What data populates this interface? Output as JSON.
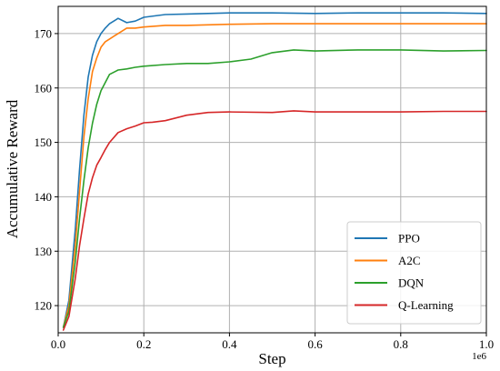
{
  "chart_data": {
    "type": "line",
    "title": "",
    "xlabel": "Step",
    "ylabel": "Accumulative Reward",
    "x_offset_label": "1e6",
    "xlim": [
      0.0,
      1.0
    ],
    "ylim": [
      115,
      175
    ],
    "x_ticks": [
      0.0,
      0.2,
      0.4,
      0.6,
      0.8,
      1.0
    ],
    "x_tick_labels": [
      "0.0",
      "0.2",
      "0.4",
      "0.6",
      "0.8",
      "1.0"
    ],
    "y_ticks": [
      120,
      130,
      140,
      150,
      160,
      170
    ],
    "y_tick_labels": [
      "120",
      "130",
      "140",
      "150",
      "160",
      "170"
    ],
    "grid": true,
    "legend_position": "bottom-right",
    "series": [
      {
        "name": "PPO",
        "color": "#1f77b4",
        "x": [
          0.012,
          0.025,
          0.04,
          0.05,
          0.06,
          0.07,
          0.08,
          0.09,
          0.1,
          0.11,
          0.12,
          0.14,
          0.16,
          0.18,
          0.2,
          0.25,
          0.3,
          0.4,
          0.5,
          0.6,
          0.7,
          0.8,
          0.9,
          1.0
        ],
        "y": [
          116,
          121,
          134,
          145,
          155,
          162,
          166,
          168.5,
          170,
          171,
          171.8,
          172.8,
          172,
          172.3,
          173,
          173.5,
          173.6,
          173.8,
          173.8,
          173.7,
          173.8,
          173.8,
          173.8,
          173.7
        ]
      },
      {
        "name": "A2C",
        "color": "#ff7f0e",
        "x": [
          0.012,
          0.025,
          0.04,
          0.05,
          0.06,
          0.07,
          0.08,
          0.09,
          0.1,
          0.11,
          0.12,
          0.14,
          0.16,
          0.18,
          0.2,
          0.25,
          0.3,
          0.4,
          0.5,
          0.6,
          0.7,
          0.8,
          0.9,
          1.0
        ],
        "y": [
          116,
          120,
          131,
          141,
          151,
          158,
          163,
          165.5,
          167.5,
          168.5,
          169,
          170,
          171,
          171,
          171.2,
          171.5,
          171.5,
          171.7,
          171.8,
          171.8,
          171.8,
          171.8,
          171.8,
          171.8
        ]
      },
      {
        "name": "DQN",
        "color": "#2ca02c",
        "x": [
          0.012,
          0.025,
          0.04,
          0.05,
          0.06,
          0.07,
          0.08,
          0.09,
          0.1,
          0.11,
          0.12,
          0.14,
          0.16,
          0.18,
          0.2,
          0.25,
          0.3,
          0.35,
          0.4,
          0.45,
          0.5,
          0.55,
          0.6,
          0.7,
          0.8,
          0.9,
          1.0
        ],
        "y": [
          116,
          119,
          128,
          136,
          143,
          149,
          153.5,
          157,
          159.5,
          161,
          162.5,
          163.3,
          163.5,
          163.8,
          164,
          164.3,
          164.5,
          164.5,
          164.8,
          165.3,
          166.5,
          167,
          166.8,
          167,
          167,
          166.8,
          166.9
        ]
      },
      {
        "name": "Q-Learning",
        "color": "#d62728",
        "x": [
          0.012,
          0.025,
          0.04,
          0.05,
          0.06,
          0.07,
          0.08,
          0.09,
          0.1,
          0.11,
          0.12,
          0.14,
          0.16,
          0.18,
          0.2,
          0.22,
          0.25,
          0.3,
          0.35,
          0.4,
          0.5,
          0.55,
          0.6,
          0.7,
          0.8,
          0.9,
          1.0
        ],
        "y": [
          115.5,
          118,
          125,
          131,
          136,
          140.5,
          143.5,
          145.8,
          147.2,
          148.7,
          150,
          151.8,
          152.5,
          153,
          153.6,
          153.7,
          154,
          155,
          155.5,
          155.6,
          155.5,
          155.8,
          155.6,
          155.6,
          155.6,
          155.7,
          155.7
        ]
      }
    ]
  }
}
